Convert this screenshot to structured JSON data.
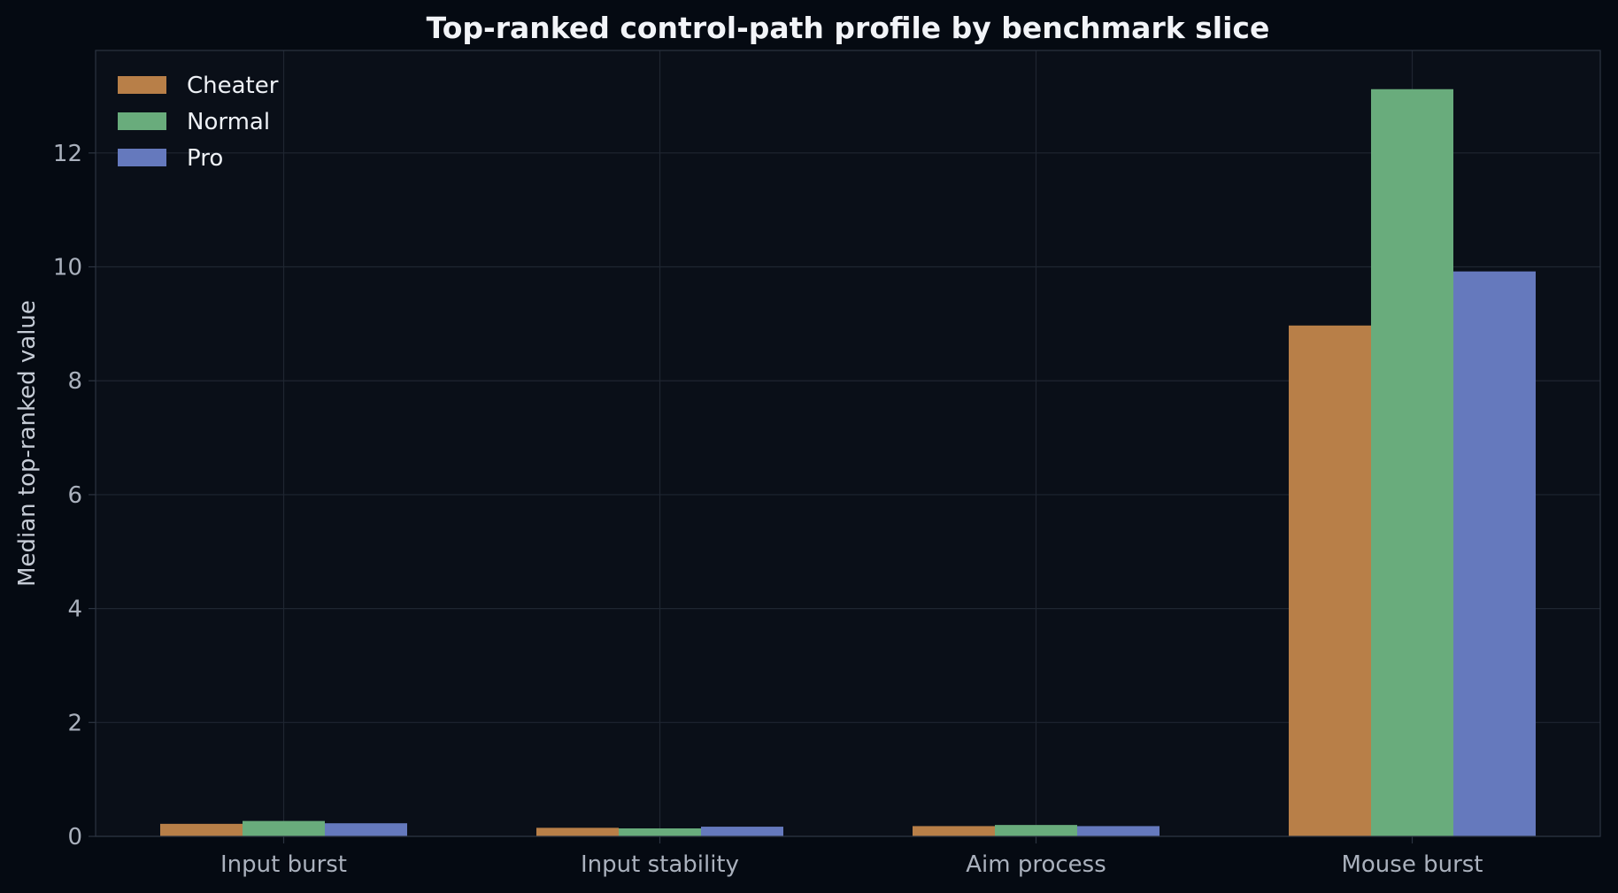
{
  "chart_data": {
    "type": "bar",
    "title": "Top-ranked control-path profile by benchmark slice",
    "xlabel": "",
    "ylabel": "Median top-ranked value",
    "categories": [
      "Input burst",
      "Input stability",
      "Aim process",
      "Mouse burst"
    ],
    "series": [
      {
        "name": "Cheater",
        "color": "#b87f48",
        "values": [
          0.22,
          0.15,
          0.18,
          8.97
        ]
      },
      {
        "name": "Normal",
        "color": "#69ac7c",
        "values": [
          0.27,
          0.14,
          0.2,
          13.12
        ]
      },
      {
        "name": "Pro",
        "color": "#6579bd",
        "values": [
          0.23,
          0.17,
          0.18,
          9.92
        ]
      }
    ],
    "ylim": [
      0,
      13.8
    ],
    "yticks": [
      0,
      2,
      4,
      6,
      8,
      10,
      12
    ],
    "grid": true,
    "legend_position": "top-left",
    "colors": {
      "background": "#050a12",
      "plot_background": "#0a0f18",
      "grid": "#1f2631",
      "spine": "#2c3441"
    }
  }
}
